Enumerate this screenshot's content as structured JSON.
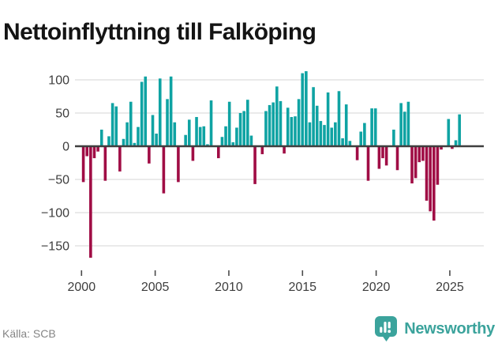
{
  "title": "Nettoinflyttning till Falköping",
  "footer": {
    "source": "Källa: SCB",
    "brand": "Newsworthy"
  },
  "colors": {
    "positive_bar": "#0fa3a3",
    "negative_bar": "#a00d45",
    "gridline": "#e3e3e3",
    "zero_line": "#3f3f3f",
    "tick": "#4a4a4a",
    "axis_label": "#3d3d3d",
    "brand_teal": "#3ba39c",
    "source_gray": "#858585",
    "title_color": "#141414"
  },
  "chart_data": {
    "type": "bar",
    "title": "Nettoinflyttning till Falköping",
    "xlabel": "",
    "ylabel": "",
    "y_ticks": [
      100,
      50,
      0,
      -50,
      -100,
      -150
    ],
    "y_tick_labels": [
      "100",
      "50",
      "0",
      "−50",
      "−100",
      "−150"
    ],
    "x_ticks": [
      2000,
      2005,
      2010,
      2015,
      2020,
      2025
    ],
    "x_tick_labels": [
      "2000",
      "2005",
      "2010",
      "2015",
      "2020",
      "2025"
    ],
    "ylim": [
      -178,
      120
    ],
    "grid": "horizontal",
    "legend": "none",
    "series_unit": "quarterly net migration",
    "quarterly": [
      {
        "year": 2000,
        "values": [
          -54,
          -15,
          -168,
          -18
        ]
      },
      {
        "year": 2001,
        "values": [
          -8,
          25,
          -52,
          15
        ]
      },
      {
        "year": 2002,
        "values": [
          65,
          60,
          -38,
          11
        ]
      },
      {
        "year": 2003,
        "values": [
          36,
          67,
          5,
          29
        ]
      },
      {
        "year": 2004,
        "values": [
          97,
          105,
          -26,
          47
        ]
      },
      {
        "year": 2005,
        "values": [
          19,
          102,
          -71,
          71
        ]
      },
      {
        "year": 2006,
        "values": [
          105,
          36,
          -54,
          0
        ]
      },
      {
        "year": 2007,
        "values": [
          17,
          40,
          -22,
          44
        ]
      },
      {
        "year": 2008,
        "values": [
          29,
          30,
          3,
          69
        ]
      },
      {
        "year": 2009,
        "values": [
          0,
          -18,
          14,
          30
        ]
      },
      {
        "year": 2010,
        "values": [
          67,
          6,
          28,
          50
        ]
      },
      {
        "year": 2011,
        "values": [
          53,
          70,
          16,
          -57
        ]
      },
      {
        "year": 2012,
        "values": [
          0,
          -12,
          53,
          62
        ]
      },
      {
        "year": 2013,
        "values": [
          66,
          90,
          68,
          -11
        ]
      },
      {
        "year": 2014,
        "values": [
          58,
          44,
          45,
          71
        ]
      },
      {
        "year": 2015,
        "values": [
          110,
          113,
          36,
          89
        ]
      },
      {
        "year": 2016,
        "values": [
          61,
          38,
          32,
          81
        ]
      },
      {
        "year": 2017,
        "values": [
          28,
          36,
          83,
          12
        ]
      },
      {
        "year": 2018,
        "values": [
          63,
          8,
          0,
          -21
        ]
      },
      {
        "year": 2019,
        "values": [
          22,
          35,
          -52,
          57
        ]
      },
      {
        "year": 2020,
        "values": [
          57,
          -34,
          -18,
          -29
        ]
      },
      {
        "year": 2021,
        "values": [
          0,
          25,
          -36,
          65
        ]
      },
      {
        "year": 2022,
        "values": [
          52,
          67,
          -56,
          -48
        ]
      },
      {
        "year": 2023,
        "values": [
          -24,
          -22,
          -82,
          -98
        ]
      },
      {
        "year": 2024,
        "values": [
          -112,
          -58,
          -5,
          0
        ]
      },
      {
        "year": 2025,
        "values": [
          41,
          -4,
          9,
          48
        ]
      }
    ]
  }
}
